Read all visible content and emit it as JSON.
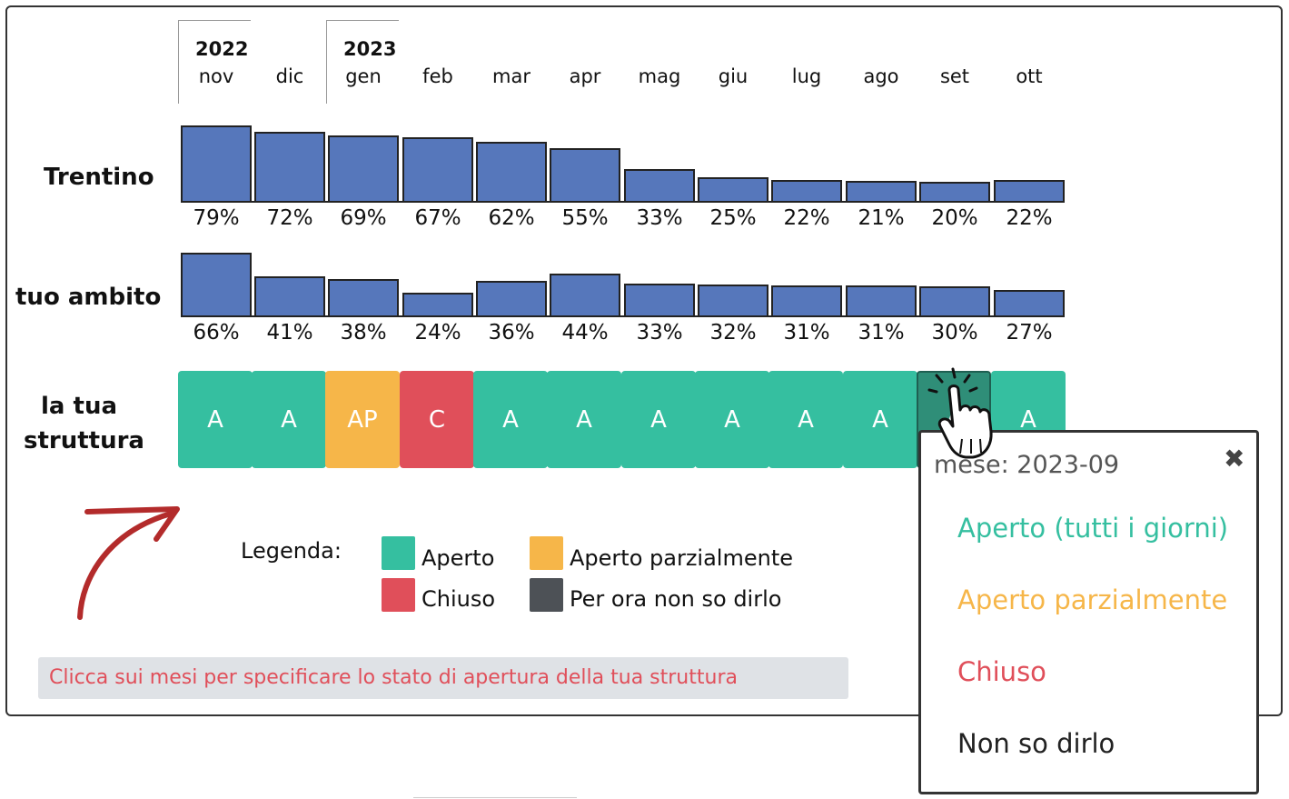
{
  "timeline": {
    "years": [
      {
        "label": "2022",
        "month_index": 0
      },
      {
        "label": "2023",
        "month_index": 2
      }
    ],
    "months": [
      "nov",
      "dic",
      "gen",
      "feb",
      "mar",
      "apr",
      "mag",
      "giu",
      "lug",
      "ago",
      "set",
      "ott"
    ]
  },
  "rows": {
    "trentino": {
      "label": "Trentino",
      "values": [
        79,
        72,
        69,
        67,
        62,
        55,
        33,
        25,
        22,
        21,
        20,
        22
      ],
      "labels": [
        "79%",
        "72%",
        "69%",
        "67%",
        "62%",
        "55%",
        "33%",
        "25%",
        "22%",
        "21%",
        "20%",
        "22%"
      ]
    },
    "ambito": {
      "label": "tuo ambito",
      "values": [
        66,
        41,
        38,
        24,
        36,
        44,
        33,
        32,
        31,
        31,
        30,
        27
      ],
      "labels": [
        "66%",
        "41%",
        "38%",
        "24%",
        "36%",
        "44%",
        "33%",
        "32%",
        "31%",
        "31%",
        "30%",
        "27%"
      ]
    },
    "struttura": {
      "label_line1": "la tua",
      "label_line2": "struttura",
      "cells": [
        {
          "code": "A",
          "color": "#35bfa0"
        },
        {
          "code": "A",
          "color": "#35bfa0"
        },
        {
          "code": "AP",
          "color": "#f6b649"
        },
        {
          "code": "C",
          "color": "#e04f5a"
        },
        {
          "code": "A",
          "color": "#35bfa0"
        },
        {
          "code": "A",
          "color": "#35bfa0"
        },
        {
          "code": "A",
          "color": "#35bfa0"
        },
        {
          "code": "A",
          "color": "#35bfa0"
        },
        {
          "code": "A",
          "color": "#35bfa0"
        },
        {
          "code": "A",
          "color": "#35bfa0"
        },
        {
          "code": "A",
          "color": "#2f8e78"
        },
        {
          "code": "A",
          "color": "#35bfa0"
        }
      ]
    }
  },
  "legend": {
    "title": "Legenda:",
    "items": [
      {
        "label": "Aperto",
        "color": "#35bfa0"
      },
      {
        "label": "Aperto parzialmente",
        "color": "#f6b649"
      },
      {
        "label": "Chiuso",
        "color": "#e04f5a"
      },
      {
        "label": "Per ora non so dirlo",
        "color": "#4d5156"
      }
    ]
  },
  "hint": "Clicca sui mesi per specificare lo stato di apertura della tua struttura",
  "popup": {
    "title": "mese: 2023-09",
    "close_icon": "close-icon",
    "options": [
      {
        "label": "Aperto (tutti i giorni)",
        "color": "#35bfa0"
      },
      {
        "label": "Aperto parzialmente",
        "color": "#f6b649"
      },
      {
        "label": "Chiuso",
        "color": "#e04f5a"
      },
      {
        "label": "Non so dirlo",
        "color": "#222222"
      }
    ]
  },
  "icons": {
    "arrow": "curved-arrow-icon",
    "cursor": "hand-pointer-icon"
  }
}
